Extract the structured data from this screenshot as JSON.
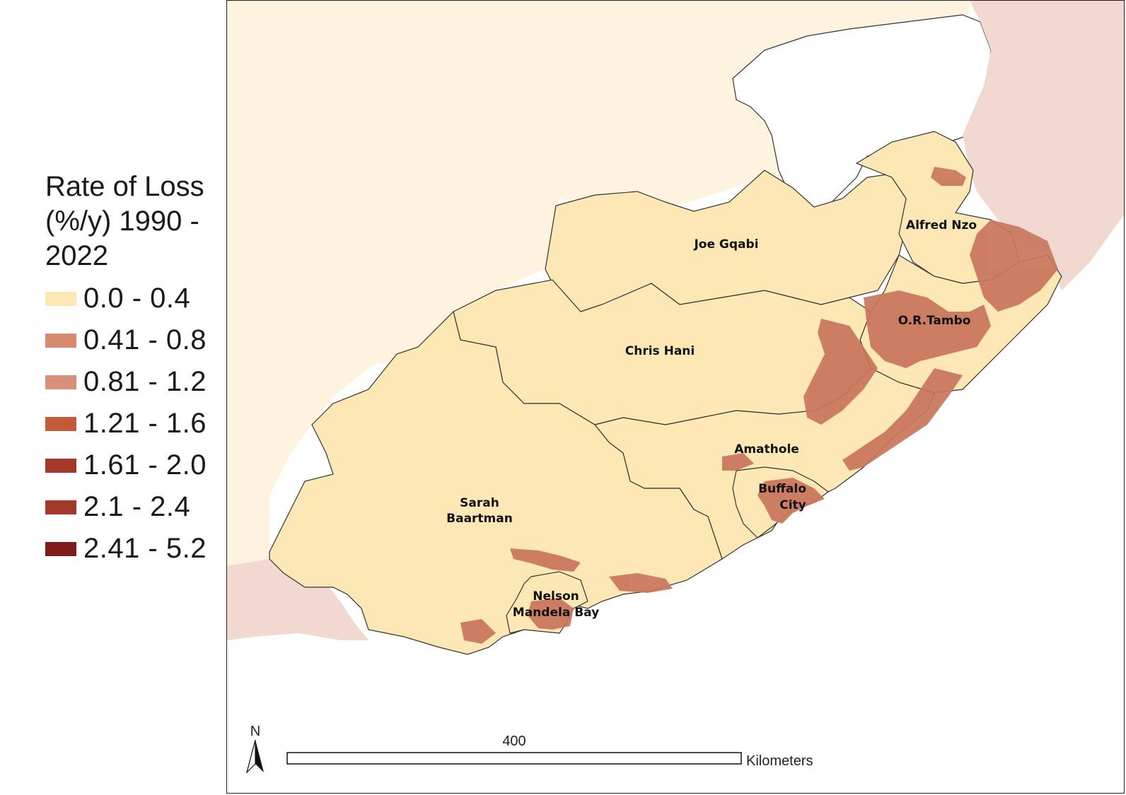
{
  "legend": {
    "title": "Rate of Loss\n(%/y) 1990 -\n2022",
    "classes": [
      {
        "label": "0.0 - 0.4",
        "color": "#fde8b5"
      },
      {
        "label": "0.41 - 0.8",
        "color": "#d68a6e"
      },
      {
        "label": "0.81 - 1.2",
        "color": "#d8907a"
      },
      {
        "label": "1.21 - 1.6",
        "color": "#c45a3c"
      },
      {
        "label": "1.61 - 2.0",
        "color": "#a6382a"
      },
      {
        "label": "2.1 - 2.4",
        "color": "#a23a2c"
      },
      {
        "label": "2.41 - 5.2",
        "color": "#7d1c18"
      }
    ]
  },
  "map": {
    "regions": [
      {
        "name": "Joe Gqabi"
      },
      {
        "name": "Alfred Nzo"
      },
      {
        "name": "O.R.Tambo"
      },
      {
        "name": "Chris Hani"
      },
      {
        "name": "Amathole"
      },
      {
        "name": "Buffalo",
        "name2": "City"
      },
      {
        "name": "Sarah",
        "name2": "Baartman"
      },
      {
        "name": "Nelson",
        "name2": "Mandela Bay"
      }
    ],
    "colors": {
      "background_land": "#fdf3df",
      "neighbor_pink": "#f1d9d2",
      "study_area": "#fde8b5",
      "loss_high": "#c9765c",
      "border": "#333333"
    }
  },
  "north_arrow": {
    "label": "N"
  },
  "scale_bar": {
    "value": "400",
    "units": "Kilometers"
  }
}
